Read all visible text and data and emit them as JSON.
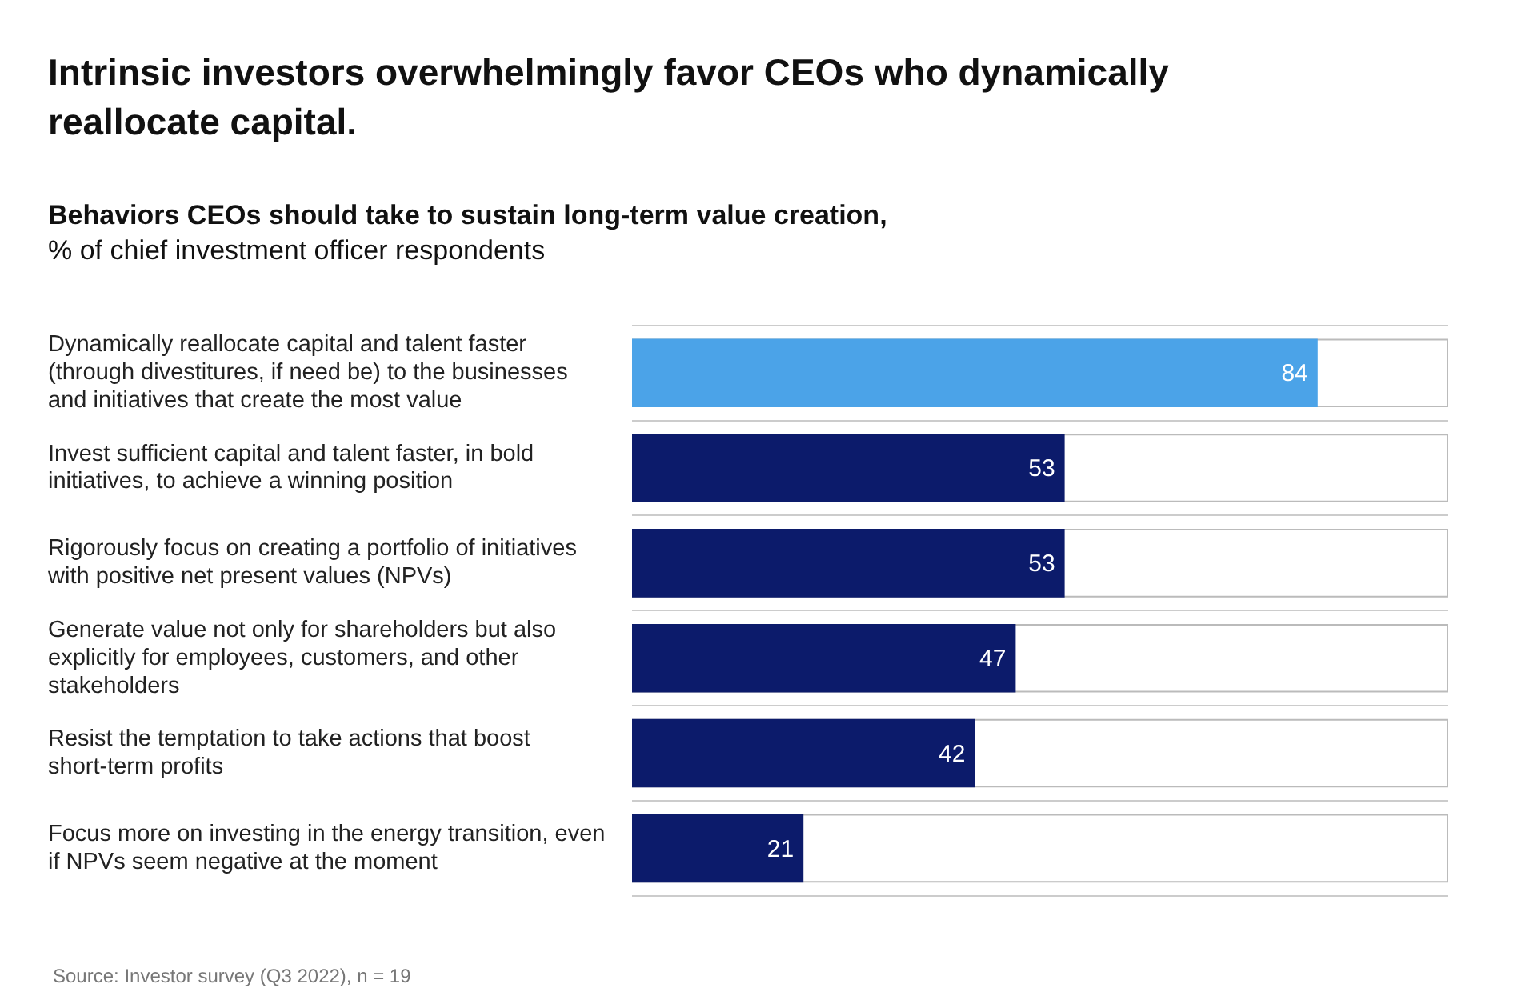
{
  "chart_data": {
    "type": "bar",
    "orientation": "horizontal",
    "title": "Intrinsic investors overwhelmingly favor CEOs who dynamically reallocate capital.",
    "subtitle": "Behaviors CEOs should take to sustain long-term value creation,\n% of chief investment officer respondents",
    "categories": [
      "Dynamically reallocate capital and talent faster (through divestitures, if need be) to the businesses and initiatives that create the most value",
      "Invest sufficient capital and talent faster, in bold initiatives, to achieve a winning position",
      "Rigorously focus on creating a portfolio of initiatives with positive net present values (NPVs)",
      "Generate value not only for shareholders but also explicitly for employees, customers, and other stakeholders",
      "Resist the temptation to take actions that boost short-term profits",
      "Focus more on investing in the energy transition, even if NPVs seem negative at the moment"
    ],
    "values": [
      84,
      53,
      53,
      47,
      42,
      21
    ],
    "colors": [
      "#4ba3e8",
      "#0c1b6b",
      "#0c1b6b",
      "#0c1b6b",
      "#0c1b6b",
      "#0c1b6b"
    ],
    "xlim": [
      0,
      100
    ],
    "tick_labels": "y",
    "data_labels": true,
    "grid": "y",
    "legend": false,
    "annotations": [
      "Source: Investor survey (Q3 2022), n = 19"
    ]
  }
}
